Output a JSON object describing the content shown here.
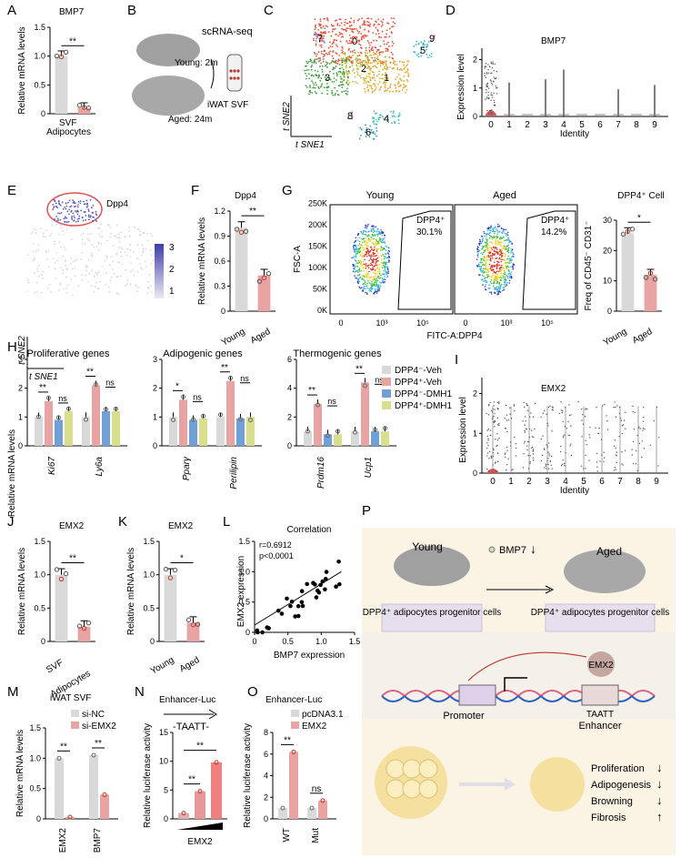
{
  "colors": {
    "gray_bar": "#d9d9d9",
    "pink_bar": "#e8a3a3",
    "red_dot": "#c0392b",
    "blue_bar": "#6fa1d6",
    "yellow_bar": "#d8de8c",
    "violin_red": "#e05050",
    "panel_p_bg": "#fbf3e4"
  },
  "panels": {
    "A": {
      "letter": "A",
      "title": "BMP7",
      "ylabel": "Relative mRNA levels",
      "yticks": [
        "0",
        "0.5",
        "1.0",
        "1.5"
      ],
      "cats": [
        "SVF",
        "Adipocytes"
      ],
      "values": [
        1.0,
        0.1
      ],
      "sig": "**"
    },
    "B": {
      "letter": "B",
      "young": "Young: 2m",
      "aged": "Aged: 24m",
      "assay": "scRNA-seq",
      "sample": "iWAT SVF"
    },
    "C": {
      "letter": "C",
      "clusters": [
        "0",
        "1",
        "2",
        "3",
        "4",
        "5",
        "6",
        "7",
        "8",
        "9"
      ],
      "xlabel": "t SNE1",
      "ylabel": "t SNE2"
    },
    "D": {
      "letter": "D",
      "title": "BMP7",
      "ylabel": "Expression level",
      "xlabel": "Identity",
      "yticks": [
        "0",
        "1",
        "2"
      ],
      "cats": [
        "0",
        "1",
        "2",
        "3",
        "4",
        "5",
        "6",
        "7",
        "8",
        "9"
      ]
    },
    "E": {
      "letter": "E",
      "gene": "Dpp4",
      "scale": [
        "3",
        "2",
        "1"
      ],
      "xlabel": "t SNE1",
      "ylabel": "t SNE2"
    },
    "F": {
      "letter": "F",
      "title": "Dpp4",
      "ylabel": "Relative mRNA levels",
      "yticks": [
        "0",
        "0.3",
        "0.6",
        "0.9",
        "1.2"
      ],
      "cats": [
        "Young",
        "Aged"
      ],
      "values": [
        1.0,
        0.43
      ],
      "sig": "**"
    },
    "G": {
      "letter": "G",
      "young_title": "Young",
      "aged_title": "Aged",
      "gate_label": "DPP4⁺",
      "young_pct": "30.1%",
      "aged_pct": "14.2%",
      "ylabel": "FSC-A",
      "xlabel": "FITC-A:DPP4",
      "yticks": [
        "0K",
        "50K",
        "100K",
        "150K",
        "200K",
        "250K"
      ],
      "xticks": [
        "0",
        "10³",
        "10⁵"
      ],
      "bar_title": "DPP4⁺ Cell",
      "bar_ylabel": "Freq of CD45⁻ CD31⁻",
      "bar_yticks": [
        "0",
        "10",
        "20",
        "30"
      ],
      "bar_cats": [
        "Young",
        "Aged"
      ],
      "bar_values": [
        30,
        14
      ],
      "bar_sig": "*"
    },
    "H": {
      "letter": "H",
      "ylabel": "Relative mRNA levels",
      "groups": [
        {
          "title": "Proliferative genes",
          "genes": [
            "Ki67",
            "Ly6a"
          ],
          "yticks": [
            "0",
            "1",
            "2",
            "3"
          ],
          "ymax": 3,
          "values": [
            [
              1,
              1.55,
              0.9,
              1.2
            ],
            [
              1,
              2.1,
              1.2,
              1.2
            ]
          ],
          "sig": [
            [
              "**",
              "ns"
            ],
            [
              "**",
              "ns"
            ]
          ]
        },
        {
          "title": "Adipogenic genes",
          "genes": [
            "Pparγ",
            "Perilipin"
          ],
          "yticks": [
            "0",
            "1",
            "2",
            "3"
          ],
          "ymax": 3,
          "values": [
            [
              1,
              1.6,
              0.9,
              0.95
            ],
            [
              1,
              2.25,
              0.95,
              1.0
            ]
          ],
          "sig": [
            [
              "*",
              "ns"
            ],
            [
              "**",
              "ns"
            ]
          ]
        },
        {
          "title": "Thermogenic genes",
          "genes": [
            "Prdm16",
            "Ucp1"
          ],
          "yticks": [
            "0",
            "2",
            "4",
            "6"
          ],
          "ymax": 6,
          "values": [
            [
              1,
              2.9,
              0.8,
              0.8
            ],
            [
              1,
              4.4,
              1.0,
              1.0
            ]
          ],
          "sig": [
            [
              "**",
              "ns"
            ],
            [
              "**",
              "ns"
            ]
          ]
        }
      ],
      "legend": [
        "DPP4⁻-Veh",
        "DPP4⁺-Veh",
        "DPP4⁻-DMH1",
        "DPP4⁺-DMH1"
      ]
    },
    "I": {
      "letter": "I",
      "title": "EMX2",
      "ylabel": "Expression level",
      "xlabel": "Identity",
      "yticks": [
        "0",
        "1",
        "2"
      ],
      "cats": [
        "0",
        "1",
        "2",
        "3",
        "4",
        "5",
        "6",
        "7",
        "8",
        "9"
      ]
    },
    "J": {
      "letter": "J",
      "title": "EMX2",
      "ylabel": "Relative mRNA levels",
      "yticks": [
        "0",
        "0.5",
        "1.0",
        "1.5"
      ],
      "cats": [
        "SVF",
        "Adipocytes"
      ],
      "values": [
        1.0,
        0.22
      ],
      "sig": "**"
    },
    "K": {
      "letter": "K",
      "title": "EMX2",
      "ylabel": "Relative mRNA levels",
      "yticks": [
        "0",
        "0.5",
        "1.0",
        "1.5"
      ],
      "cats": [
        "Young",
        "Aged"
      ],
      "values": [
        1.0,
        0.28
      ],
      "sig": "*"
    },
    "L": {
      "letter": "L",
      "title": "Correlation",
      "r": "r=0.6912",
      "p": "p<0.0001",
      "xlabel": "BMP7 expression",
      "ylabel": "EMX2 expression",
      "xticks": [
        "0",
        "0.5",
        "1.0",
        "1.5"
      ],
      "yticks": [
        "0",
        "0.5",
        "1.0",
        "1.5"
      ]
    },
    "M": {
      "letter": "M",
      "title": "iWAT SVF",
      "ylabel": "Relative mRNA levels",
      "yticks": [
        "0",
        "0.5",
        "1.0",
        "1.5"
      ],
      "cats": [
        "EMX2",
        "BMP7"
      ],
      "legend": [
        "si-NC",
        "si-EMX2"
      ],
      "values": [
        [
          1.0,
          0.03
        ],
        [
          1.05,
          0.4
        ]
      ],
      "sig": [
        "**",
        "**"
      ]
    },
    "N": {
      "letter": "N",
      "title": "Enhancer-Luc",
      "motif": "-TAATT-",
      "ylabel": "Relative luciferase activity",
      "yticks": [
        "0",
        "5",
        "10",
        "15"
      ],
      "values": [
        1,
        4.8,
        9.8
      ],
      "sig": [
        "**",
        "**"
      ],
      "xlabel": "EMX2"
    },
    "O": {
      "letter": "O",
      "title": "Enhancer-Luc",
      "ylabel": "Relative luciferase activity",
      "yticks": [
        "0",
        "2",
        "4",
        "6",
        "8"
      ],
      "cats": [
        "WT",
        "Mut"
      ],
      "legend": [
        "pcDNA3.1",
        "EMX2"
      ],
      "values": [
        [
          1,
          6.2
        ],
        [
          1,
          1.7
        ]
      ],
      "sig": [
        "**",
        "ns"
      ]
    },
    "P": {
      "letter": "P",
      "young": "Young",
      "aged": "Aged",
      "bmp7": "BMP7",
      "cells_young": "DPP4⁺ adipocytes progenitor cells",
      "cells_aged": "DPP4⁺ adipocytes progenitor cells",
      "tf": "EMX2",
      "promoter": "Promoter",
      "motif": "TAATT",
      "enhancer": "Enhancer",
      "outcomes": [
        "Proliferation",
        "Adipogenesis",
        "Browning",
        "Fibrosis"
      ]
    }
  }
}
